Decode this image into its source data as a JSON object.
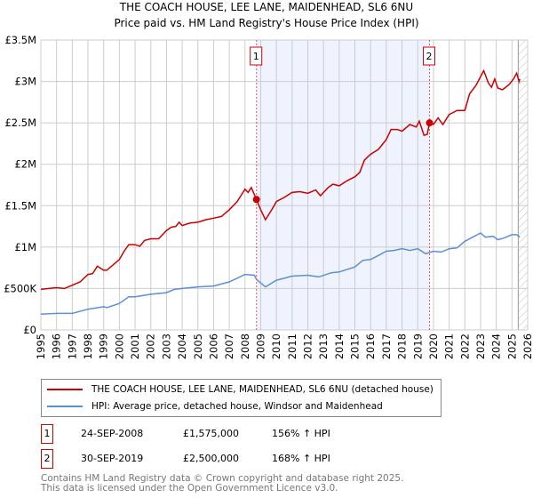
{
  "title": {
    "line1": "THE COACH HOUSE, LEE LANE, MAIDENHEAD, SL6 6NU",
    "line2": "Price paid vs. HM Land Registry's House Price Index (HPI)"
  },
  "chart_data": {
    "type": "line",
    "xlim": [
      1995,
      2026
    ],
    "ylim": [
      0,
      3500000
    ],
    "yticks": [
      0,
      500000,
      1000000,
      1500000,
      2000000,
      2500000,
      3000000,
      3500000
    ],
    "ytick_labels": [
      "£0",
      "£500K",
      "£1M",
      "£1.5M",
      "£2M",
      "£2.5M",
      "£3M",
      "£3.5M"
    ],
    "xticks": [
      "1995",
      "1996",
      "1997",
      "1998",
      "1999",
      "2000",
      "2001",
      "2002",
      "2003",
      "2004",
      "2005",
      "2006",
      "2007",
      "2008",
      "2009",
      "2010",
      "2011",
      "2012",
      "2013",
      "2014",
      "2015",
      "2016",
      "2017",
      "2018",
      "2019",
      "2020",
      "2021",
      "2022",
      "2023",
      "2024",
      "2025",
      "2026"
    ],
    "grid": true,
    "shaded_range": [
      2008.73,
      2019.75
    ],
    "hatched_from": 2025.4,
    "series": [
      {
        "name": "THE COACH HOUSE, LEE LANE, MAIDENHEAD, SL6 6NU (detached house)",
        "color": "#cc0000",
        "x": [
          1995,
          1995.5,
          1996,
          1996.5,
          1997,
          1997.5,
          1998,
          1998.3,
          1998.6,
          1999,
          1999.2,
          2000,
          2000.3,
          2000.6,
          2001,
          2001.3,
          2001.6,
          2002,
          2002.5,
          2003,
          2003.3,
          2003.6,
          2003.8,
          2004,
          2004.5,
          2005,
          2005.5,
          2006,
          2006.5,
          2007,
          2007.5,
          2008,
          2008.2,
          2008.4,
          2008.73,
          2009.0,
          2009.3,
          2009.7,
          2010,
          2010.5,
          2011,
          2011.5,
          2012,
          2012.5,
          2012.8,
          2013.3,
          2013.6,
          2014,
          2014.5,
          2015,
          2015.3,
          2015.6,
          2016,
          2016.5,
          2017,
          2017.3,
          2017.7,
          2018,
          2018.5,
          2018.9,
          2019.1,
          2019.4,
          2019.6,
          2019.75,
          2020,
          2020.3,
          2020.6,
          2021,
          2021.5,
          2022,
          2022.3,
          2022.7,
          2023.2,
          2023.5,
          2023.7,
          2023.9,
          2024.1,
          2024.4,
          2024.8,
          2025.1,
          2025.3,
          2025.45,
          2025.5
        ],
        "y": [
          490000,
          500000,
          510000,
          500000,
          540000,
          580000,
          670000,
          680000,
          770000,
          720000,
          720000,
          850000,
          950000,
          1030000,
          1030000,
          1010000,
          1080000,
          1100000,
          1100000,
          1200000,
          1240000,
          1250000,
          1300000,
          1260000,
          1290000,
          1300000,
          1330000,
          1350000,
          1370000,
          1450000,
          1550000,
          1700000,
          1660000,
          1720000,
          1575000,
          1450000,
          1330000,
          1450000,
          1550000,
          1600000,
          1660000,
          1670000,
          1650000,
          1690000,
          1620000,
          1720000,
          1760000,
          1740000,
          1800000,
          1850000,
          1900000,
          2050000,
          2120000,
          2180000,
          2300000,
          2420000,
          2420000,
          2400000,
          2480000,
          2450000,
          2520000,
          2350000,
          2360000,
          2500000,
          2480000,
          2560000,
          2480000,
          2600000,
          2650000,
          2650000,
          2850000,
          2950000,
          3130000,
          2980000,
          2930000,
          3030000,
          2920000,
          2900000,
          2960000,
          3030000,
          3100000,
          3000000,
          3030000
        ]
      },
      {
        "name": "HPI: Average price, detached house, Windsor and Maidenhead",
        "color": "#5b8fd6",
        "x": [
          1995,
          1996,
          1997,
          1998,
          1999,
          1999.2,
          2000,
          2000.6,
          2001,
          2002,
          2003,
          2003.5,
          2004,
          2005,
          2006,
          2007,
          2008,
          2008.6,
          2008.73,
          2009.3,
          2010,
          2011,
          2012,
          2012.7,
          2013.5,
          2014,
          2015,
          2015.5,
          2016,
          2016.5,
          2017,
          2017.5,
          2018,
          2018.5,
          2019,
          2019.5,
          2020,
          2020.5,
          2021,
          2021.5,
          2022,
          2022.5,
          2023,
          2023.3,
          2023.8,
          2024.1,
          2024.5,
          2025,
          2025.3,
          2025.5
        ],
        "y": [
          190000,
          200000,
          200000,
          250000,
          280000,
          270000,
          320000,
          400000,
          400000,
          430000,
          450000,
          490000,
          500000,
          520000,
          530000,
          580000,
          670000,
          660000,
          610000,
          520000,
          600000,
          650000,
          660000,
          640000,
          690000,
          700000,
          760000,
          840000,
          850000,
          900000,
          950000,
          960000,
          980000,
          960000,
          980000,
          920000,
          950000,
          940000,
          980000,
          990000,
          1070000,
          1120000,
          1170000,
          1120000,
          1130000,
          1090000,
          1110000,
          1150000,
          1150000,
          1120000
        ]
      }
    ],
    "sales": [
      {
        "label": "1",
        "x": 2008.73,
        "y": 1575000
      },
      {
        "label": "2",
        "x": 2019.75,
        "y": 2500000
      }
    ]
  },
  "legend": {
    "red": "THE COACH HOUSE, LEE LANE, MAIDENHEAD, SL6 6NU (detached house)",
    "blue": "HPI: Average price, detached house, Windsor and Maidenhead"
  },
  "sales_table": [
    {
      "num": "1",
      "date": "24-SEP-2008",
      "price": "£1,575,000",
      "hpi": "156% ↑ HPI"
    },
    {
      "num": "2",
      "date": "30-SEP-2019",
      "price": "£2,500,000",
      "hpi": "168% ↑ HPI"
    }
  ],
  "footer": {
    "line1": "Contains HM Land Registry data © Crown copyright and database right 2025.",
    "line2": "This data is licensed under the Open Government Licence v3.0."
  }
}
